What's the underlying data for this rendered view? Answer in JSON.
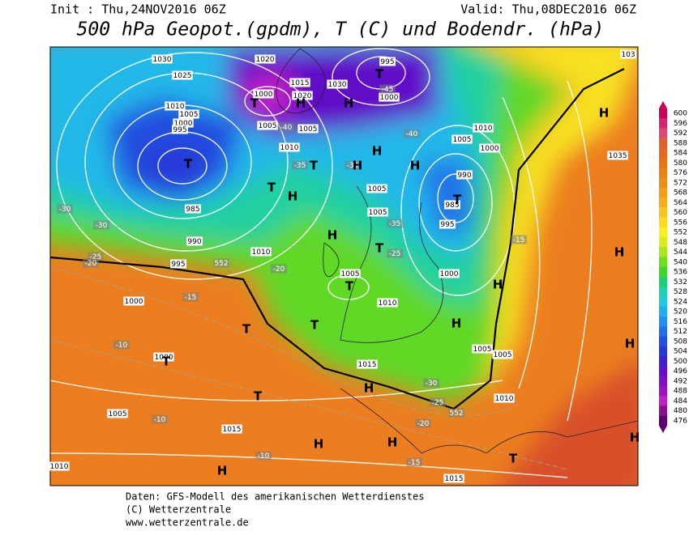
{
  "header": {
    "init": "Init : Thu,24NOV2016 06Z",
    "valid": "Valid: Thu,08DEC2016 06Z",
    "title": "500 hPa Geopot.(gpdm), T (C) und Bodendr. (hPa)"
  },
  "legend": {
    "labels": [
      "600",
      "596",
      "592",
      "588",
      "584",
      "580",
      "576",
      "572",
      "568",
      "564",
      "560",
      "556",
      "552",
      "548",
      "544",
      "540",
      "536",
      "532",
      "528",
      "524",
      "520",
      "516",
      "512",
      "508",
      "504",
      "500",
      "496",
      "492",
      "488",
      "484",
      "480",
      "476"
    ],
    "colors": [
      "#c8005a",
      "#d2266e",
      "#dc4a70",
      "#e0602e",
      "#e46a20",
      "#e87418",
      "#ec8018",
      "#f08c1a",
      "#f49c1c",
      "#f7ae1e",
      "#f9c420",
      "#fbdc22",
      "#f8f020",
      "#d8ec20",
      "#a8e420",
      "#6ede20",
      "#3cd830",
      "#20d070",
      "#20d0b0",
      "#22c8e0",
      "#20b0f0",
      "#2090f0",
      "#2070e8",
      "#2050e0",
      "#2838d8",
      "#4020d0",
      "#6010c8",
      "#8010c0",
      "#a010c0",
      "#c020c8",
      "#8a1090",
      "#600070"
    ]
  },
  "map": {
    "pressure_labels": [
      "1030",
      "1025",
      "1020",
      "995",
      "1015",
      "1030",
      "1000",
      "1020",
      "1000",
      "1010",
      "1005",
      "1000",
      "995",
      "985",
      "990",
      "995",
      "1000",
      "1010",
      "1005",
      "1005",
      "1005",
      "1010",
      "1015",
      "1010",
      "1005",
      "1015",
      "1010",
      "1015",
      "1005",
      "1005",
      "1000",
      "995",
      "985",
      "990",
      "1010",
      "1005",
      "1000",
      "1035",
      "103",
      "1000",
      "1005",
      "1005",
      "1010"
    ],
    "temperature_labels": [
      "-30",
      "-30",
      "-25",
      "-20",
      "-15",
      "-10",
      "-10",
      "-10",
      "-15",
      "-20",
      "-25",
      "-30",
      "-15",
      "-20",
      "-25",
      "-35",
      "-40",
      "-45",
      "-40",
      "-35",
      "-30",
      "552",
      "552"
    ],
    "centers": [
      "T",
      "T",
      "T",
      "H",
      "H",
      "H",
      "T",
      "H",
      "H",
      "T",
      "H",
      "T",
      "H",
      "T",
      "T",
      "H",
      "T",
      "H",
      "T",
      "T",
      "T",
      "H",
      "H",
      "H",
      "H",
      "T",
      "H",
      "H",
      "H",
      "H"
    ]
  },
  "footer": {
    "source": "Daten: GFS-Modell des amerikanischen Wetterdienstes",
    "copyright": "(C) Wetterzentrale",
    "url": "www.wetterzentrale.de"
  }
}
